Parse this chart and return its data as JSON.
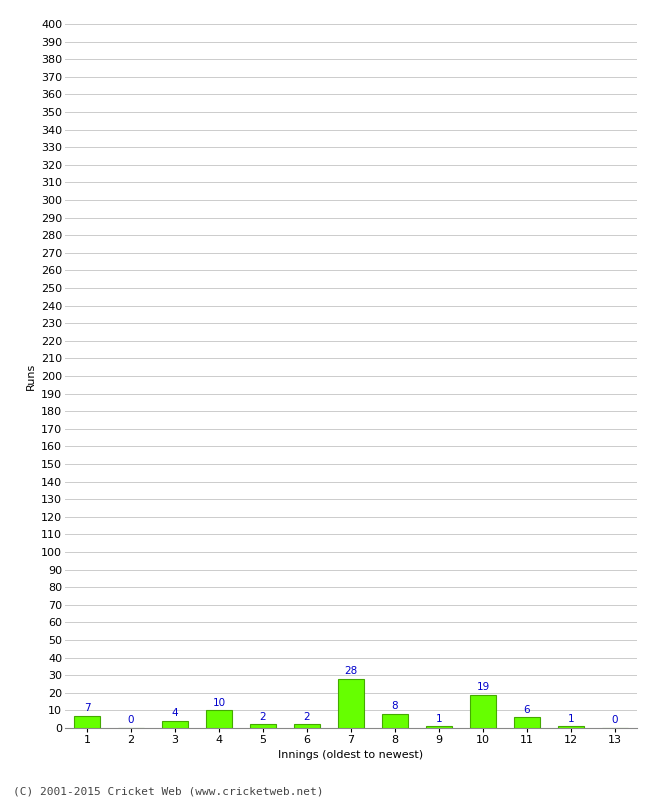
{
  "xlabel": "Innings (oldest to newest)",
  "ylabel": "Runs",
  "categories": [
    1,
    2,
    3,
    4,
    5,
    6,
    7,
    8,
    9,
    10,
    11,
    12,
    13
  ],
  "values": [
    7,
    0,
    4,
    10,
    2,
    2,
    28,
    8,
    1,
    19,
    6,
    1,
    0
  ],
  "bar_color": "#66ff00",
  "bar_edge_color": "#44aa00",
  "label_color": "#0000cc",
  "ylim": [
    0,
    400
  ],
  "ytick_step": 10,
  "grid_color": "#cccccc",
  "background_color": "#ffffff",
  "footer": "(C) 2001-2015 Cricket Web (www.cricketweb.net)",
  "footer_color": "#444444",
  "label_fontsize": 7.5,
  "axis_tick_fontsize": 8,
  "axis_label_fontsize": 8,
  "footer_fontsize": 8
}
